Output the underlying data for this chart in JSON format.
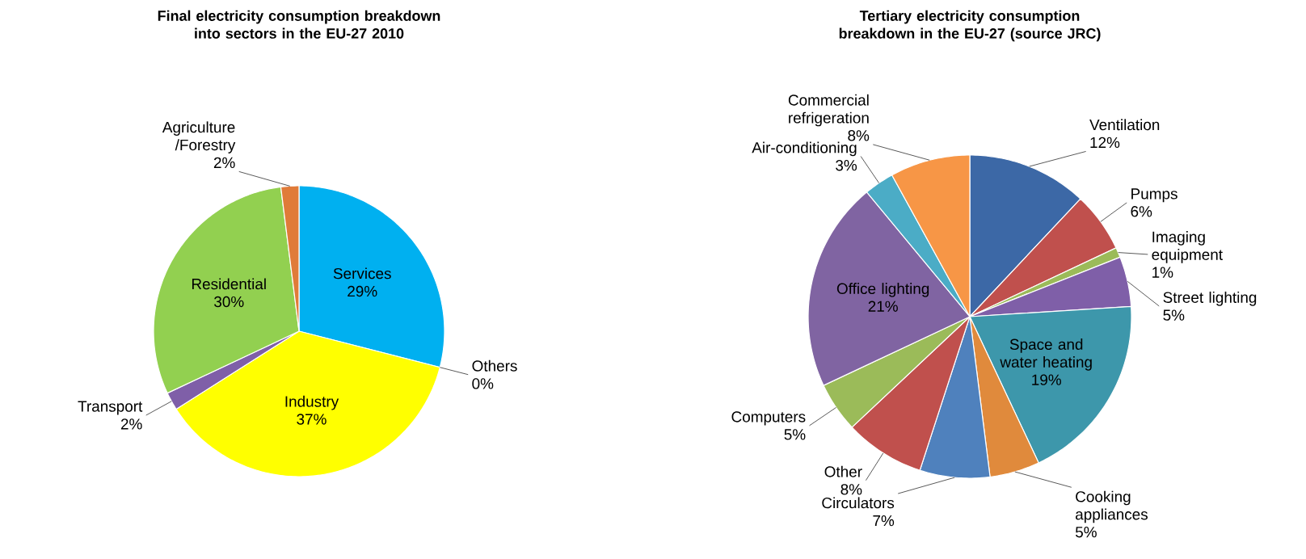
{
  "chart_data": [
    {
      "type": "pie",
      "title": "Final electricity consumption breakdown into sectors in the EU-27 2010",
      "categories": [
        "Services",
        "Others",
        "Industry",
        "Transport",
        "Residential",
        "Agriculture /Forestry"
      ],
      "values": [
        29,
        0,
        37,
        2,
        30,
        2
      ],
      "value_labels": [
        "29%",
        "0%",
        "37%",
        "2%",
        "30%",
        "2%"
      ],
      "colors": [
        "#00b0f0",
        "#c0504d",
        "#ffff00",
        "#7f5fa8",
        "#92d050",
        "#e07b39"
      ]
    },
    {
      "type": "pie",
      "title": "Tertiary electricity consumption breakdown in the EU-27 (source JRC)",
      "categories": [
        "Ventilation",
        "Pumps",
        "Imaging equipment",
        "Street lighting",
        "Space and water heating",
        "Cooking appliances",
        "Circulators",
        "Other",
        "Computers",
        "Office lighting",
        "Air-conditioning",
        "Commercial refrigeration"
      ],
      "values": [
        12,
        6,
        1,
        5,
        19,
        5,
        7,
        8,
        5,
        21,
        3,
        8
      ],
      "value_labels": [
        "12%",
        "6%",
        "1%",
        "5%",
        "19%",
        "5%",
        "7%",
        "8%",
        "5%",
        "21%",
        "3%",
        "8%"
      ],
      "colors": [
        "#3c68a6",
        "#c0504d",
        "#9bbb59",
        "#7f5fa8",
        "#3d97ab",
        "#e08a3c",
        "#4f81bd",
        "#c0504d",
        "#9bbb59",
        "#8064a2",
        "#4bacc6",
        "#f79646"
      ]
    }
  ]
}
